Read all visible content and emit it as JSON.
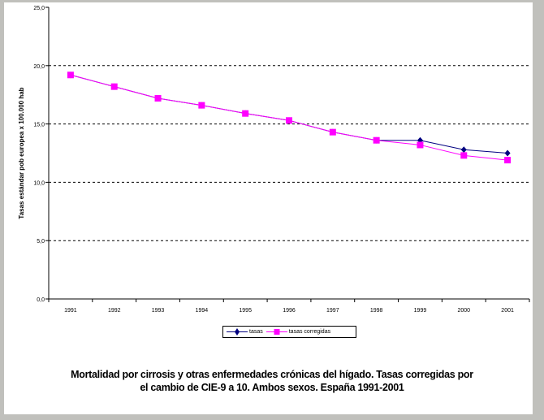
{
  "chart_data": {
    "type": "line",
    "title": [
      "Mortalidad por cirrosis y otras enfermedades crónicas del hígado. Tasas corregidas por",
      "el cambio de CIE-9 a 10. Ambos sexos. España 1991-2001"
    ],
    "xlabel": "",
    "ylabel": "Tasas estándar pob europea x 100.000 hab",
    "categories": [
      "1991",
      "1992",
      "1993",
      "1994",
      "1995",
      "1996",
      "1997",
      "1998",
      "1999",
      "2000",
      "2001"
    ],
    "ylim": [
      0,
      25
    ],
    "yticks": [
      "0,0",
      "5,0",
      "10,0",
      "15,0",
      "20,0",
      "25,0"
    ],
    "grid": "horizontal dashed",
    "legend_position": "bottom",
    "series": [
      {
        "name": "tasas",
        "color": "#000080",
        "marker": "diamond",
        "values": [
          19.2,
          18.2,
          17.2,
          16.6,
          15.9,
          15.3,
          14.3,
          13.6,
          13.6,
          12.8,
          12.5
        ]
      },
      {
        "name": "tasas corregidas",
        "color": "#ff00ff",
        "marker": "square",
        "values": [
          19.2,
          18.2,
          17.2,
          16.6,
          15.9,
          15.3,
          14.3,
          13.6,
          13.2,
          12.3,
          11.9
        ]
      }
    ]
  }
}
